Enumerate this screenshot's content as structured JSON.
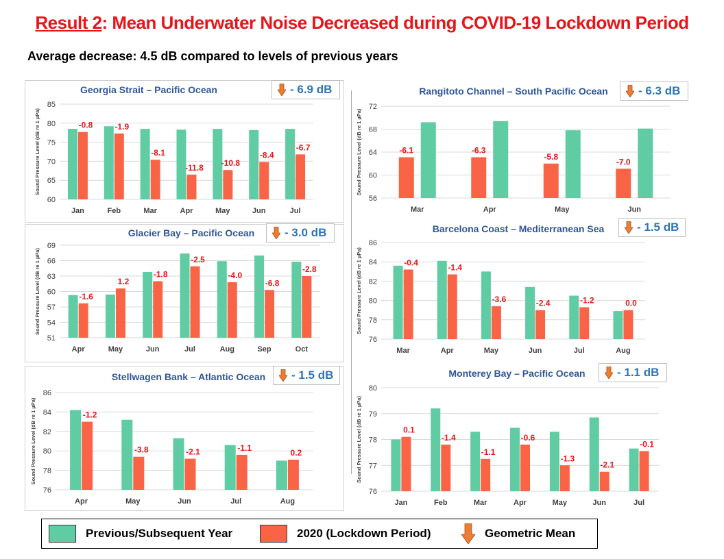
{
  "header": {
    "title_prefix": "Result 2",
    "title_rest": ": Mean Underwater Noise Decreased during COVID-19 Lockdown Period",
    "subtitle": "Average decrease: 4.5 dB compared to levels of previous years"
  },
  "colors": {
    "previous": "#5fcca3",
    "lockdown": "#fa6446",
    "label_red": "#e8141a",
    "title_blue": "#2e5597",
    "mean_blue": "#2e75b6",
    "arrow": "#ed7d31"
  },
  "legend": {
    "previous": "Previous/Subsequent  Year",
    "lockdown": "2020 (Lockdown Period)",
    "mean": "Geometric  Mean"
  },
  "chart_data": [
    {
      "type": "bar",
      "title": "Georgia Strait – Pacific Ocean",
      "mean_label": "- 6.9 dB",
      "ylabel": "Sound Pressure Level (dB re 1 µPa)",
      "ylim": [
        60,
        85
      ],
      "yticks": [
        60,
        65,
        70,
        75,
        80,
        85
      ],
      "categories": [
        "Jan",
        "Feb",
        "Mar",
        "Apr",
        "May",
        "Jun",
        "Jul"
      ],
      "series": [
        {
          "values": [
            78.5,
            79.2,
            78.5,
            78.3,
            78.5,
            78.2,
            78.5
          ]
        },
        {
          "values": [
            77.7,
            77.3,
            70.4,
            66.5,
            67.7,
            69.8,
            71.8
          ]
        }
      ],
      "labels": [
        "-0.8",
        "-1.9",
        "-8.1",
        "-11.8",
        "-10.8",
        "-8.4",
        "-6.7"
      ]
    },
    {
      "type": "bar",
      "title": "Rangitoto Channel – South Pacific Ocean",
      "mean_label": "- 6.3 dB",
      "ylabel": "Sound Pressure Level (dB re 1 µPa)",
      "ylim": [
        56,
        72
      ],
      "yticks": [
        56,
        60,
        64,
        68,
        72
      ],
      "categories": [
        "Mar",
        "Apr",
        "May",
        "Jun"
      ],
      "bar_order": "lockdown_first",
      "series": [
        {
          "values": [
            69.2,
            69.4,
            67.8,
            68.1
          ]
        },
        {
          "values": [
            63.1,
            63.1,
            62.0,
            61.1
          ]
        }
      ],
      "labels": [
        "-6.1",
        "-6.3",
        "-5.8",
        "-7.0"
      ]
    },
    {
      "type": "bar",
      "title": "Glacier Bay – Pacific Ocean",
      "mean_label": "- 3.0 dB",
      "ylabel": "Sound Pressure Level (dB re 1 µPa)",
      "ylim": [
        51,
        69
      ],
      "yticks": [
        51,
        54,
        57,
        60,
        63,
        66,
        69
      ],
      "categories": [
        "Apr",
        "May",
        "Jun",
        "Jul",
        "Aug",
        "Sep",
        "Oct"
      ],
      "series": [
        {
          "values": [
            59.3,
            59.4,
            63.8,
            67.4,
            65.9,
            67.0,
            65.8
          ]
        },
        {
          "values": [
            57.7,
            60.6,
            62.0,
            64.9,
            61.8,
            60.3,
            63.0
          ]
        }
      ],
      "labels": [
        "-1.6",
        "1.2",
        "-1.8",
        "-2.5",
        "-4.0",
        "-6.8",
        "-2.8"
      ]
    },
    {
      "type": "bar",
      "title": "Barcelona Coast – Mediterranean Sea",
      "mean_label": "- 1.5 dB",
      "ylabel": "Sound Pressure Level (dB re 1 µPa)",
      "ylim": [
        76,
        86
      ],
      "yticks": [
        76,
        78,
        80,
        82,
        84,
        86
      ],
      "categories": [
        "Mar",
        "Apr",
        "May",
        "Jun",
        "Jul",
        "Aug"
      ],
      "series": [
        {
          "values": [
            83.6,
            84.1,
            83.0,
            81.4,
            80.5,
            78.9
          ]
        },
        {
          "values": [
            83.2,
            82.7,
            79.4,
            79.0,
            79.3,
            79.0
          ]
        }
      ],
      "labels": [
        "-0.4",
        "-1.4",
        "-3.6",
        "-2.4",
        "-1.2",
        "0.0"
      ]
    },
    {
      "type": "bar",
      "title": "Stellwagen Bank – Atlantic Ocean",
      "mean_label": "- 1.5 dB",
      "ylabel": "Sound Pressure Level (dB re 1 µPa)",
      "ylim": [
        76,
        86
      ],
      "yticks": [
        76,
        78,
        80,
        82,
        84,
        86
      ],
      "categories": [
        "Apr",
        "May",
        "Jun",
        "Jul",
        "Aug"
      ],
      "series": [
        {
          "values": [
            84.2,
            83.2,
            81.3,
            80.6,
            79.0
          ]
        },
        {
          "values": [
            83.0,
            79.4,
            79.2,
            79.6,
            79.1
          ]
        }
      ],
      "labels": [
        "-1.2",
        "-3.8",
        "-2.1",
        "-1.1",
        "0.2"
      ]
    },
    {
      "type": "bar",
      "title": "Monterey Bay – Pacific Ocean",
      "mean_label": "- 1.1 dB",
      "ylabel": "Sound Pressure Level (dB re 1 µPa)",
      "ylim": [
        76,
        80
      ],
      "yticks": [
        76,
        77,
        78,
        79,
        80
      ],
      "categories": [
        "Jan",
        "Feb",
        "Mar",
        "Apr",
        "May",
        "Jun",
        "Jul"
      ],
      "series": [
        {
          "values": [
            78.0,
            79.2,
            78.3,
            78.45,
            78.3,
            78.85,
            77.65
          ]
        },
        {
          "values": [
            78.1,
            77.8,
            77.25,
            77.8,
            77.0,
            76.75,
            77.55
          ]
        }
      ],
      "labels": [
        "0.1",
        "-1.4",
        "-1.1",
        "-0.6",
        "-1.3",
        "-2.1",
        "-0.1"
      ]
    }
  ]
}
